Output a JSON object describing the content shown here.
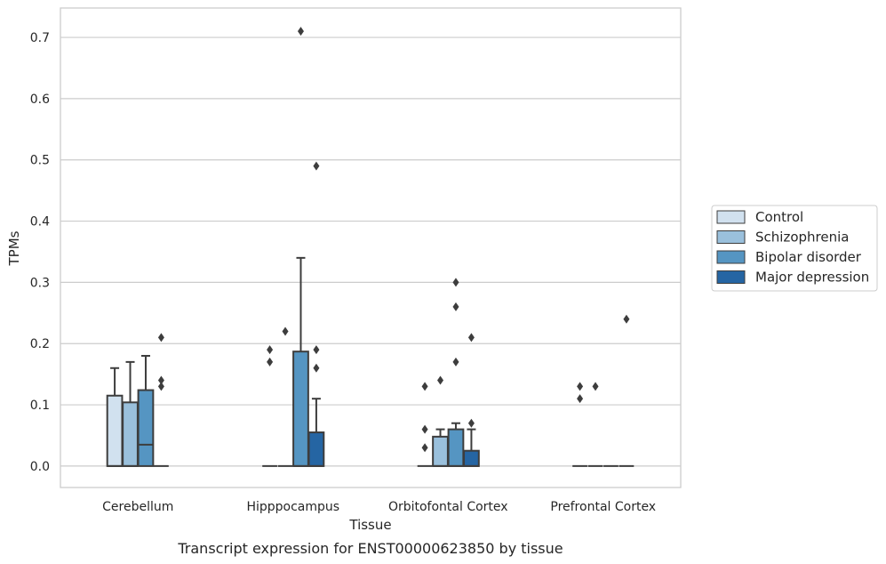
{
  "caption": "Transcript expression for ENST00000623850 by tissue",
  "chart_data": {
    "type": "box",
    "title": "",
    "xlabel": "Tissue",
    "ylabel": "TPMs",
    "ylim": [
      -0.035,
      0.748
    ],
    "yticks": [
      "0.0",
      "0.1",
      "0.2",
      "0.3",
      "0.4",
      "0.5",
      "0.6",
      "0.7"
    ],
    "categories": [
      "Cerebellum",
      "Hipppocampus",
      "Orbitofontal Cortex",
      "Prefrontal Cortex"
    ],
    "grid": "horizontal",
    "legend_position": "right",
    "series": [
      {
        "name": "Control",
        "color": "#d1e1ef",
        "boxes": [
          {
            "q1": 0.0,
            "median": 0.0,
            "q3": 0.115,
            "whisker_low": 0.0,
            "whisker_high": 0.16,
            "outliers": []
          },
          {
            "q1": 0.0,
            "median": 0.0,
            "q3": 0.0,
            "whisker_low": 0.0,
            "whisker_high": 0.0,
            "outliers": [
              0.17,
              0.19
            ]
          },
          {
            "q1": 0.0,
            "median": 0.0,
            "q3": 0.0,
            "whisker_low": 0.0,
            "whisker_high": 0.0,
            "outliers": [
              0.03,
              0.06,
              0.13
            ]
          },
          {
            "q1": 0.0,
            "median": 0.0,
            "q3": 0.0,
            "whisker_low": 0.0,
            "whisker_high": 0.0,
            "outliers": [
              0.11,
              0.13
            ]
          }
        ]
      },
      {
        "name": "Schizophrenia",
        "color": "#9ac0dc",
        "boxes": [
          {
            "q1": 0.0,
            "median": 0.0,
            "q3": 0.104,
            "whisker_low": 0.0,
            "whisker_high": 0.17,
            "outliers": []
          },
          {
            "q1": 0.0,
            "median": 0.0,
            "q3": 0.0,
            "whisker_low": 0.0,
            "whisker_high": 0.0,
            "outliers": [
              0.22
            ]
          },
          {
            "q1": 0.0,
            "median": 0.0,
            "q3": 0.048,
            "whisker_low": 0.0,
            "whisker_high": 0.06,
            "outliers": [
              0.14
            ]
          },
          {
            "q1": 0.0,
            "median": 0.0,
            "q3": 0.0,
            "whisker_low": 0.0,
            "whisker_high": 0.0,
            "outliers": [
              0.13
            ]
          }
        ]
      },
      {
        "name": "Bipolar disorder",
        "color": "#5595c2",
        "boxes": [
          {
            "q1": 0.0,
            "median": 0.035,
            "q3": 0.124,
            "whisker_low": 0.0,
            "whisker_high": 0.18,
            "outliers": []
          },
          {
            "q1": 0.0,
            "median": 0.0,
            "q3": 0.187,
            "whisker_low": 0.0,
            "whisker_high": 0.34,
            "outliers": [
              0.71
            ]
          },
          {
            "q1": 0.0,
            "median": 0.0,
            "q3": 0.06,
            "whisker_low": 0.0,
            "whisker_high": 0.07,
            "outliers": [
              0.17,
              0.26,
              0.3
            ]
          },
          {
            "q1": 0.0,
            "median": 0.0,
            "q3": 0.0,
            "whisker_low": 0.0,
            "whisker_high": 0.0,
            "outliers": []
          }
        ]
      },
      {
        "name": "Major depression",
        "color": "#2565a3",
        "boxes": [
          {
            "q1": 0.0,
            "median": 0.0,
            "q3": 0.0,
            "whisker_low": 0.0,
            "whisker_high": 0.0,
            "outliers": [
              0.13,
              0.14,
              0.21
            ]
          },
          {
            "q1": 0.0,
            "median": 0.0,
            "q3": 0.055,
            "whisker_low": 0.0,
            "whisker_high": 0.11,
            "outliers": [
              0.16,
              0.19,
              0.49
            ]
          },
          {
            "q1": 0.0,
            "median": 0.0,
            "q3": 0.025,
            "whisker_low": 0.0,
            "whisker_high": 0.06,
            "outliers": [
              0.07,
              0.21
            ]
          },
          {
            "q1": 0.0,
            "median": 0.0,
            "q3": 0.0,
            "whisker_low": 0.0,
            "whisker_high": 0.0,
            "outliers": [
              0.24
            ]
          }
        ]
      }
    ]
  }
}
